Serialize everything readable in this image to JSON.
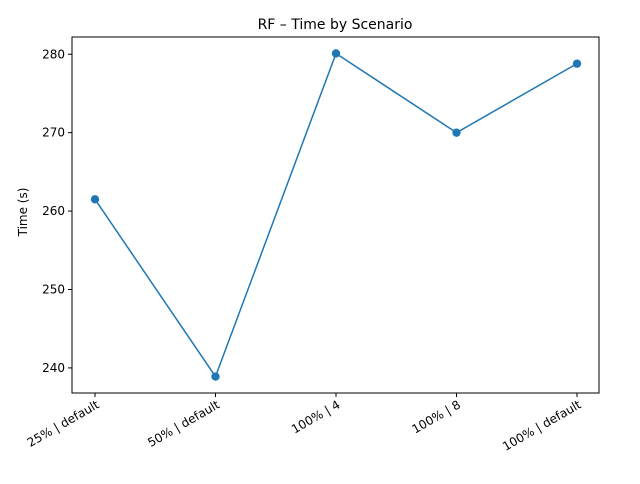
{
  "chart_data": {
    "type": "line",
    "title": "RF – Time by Scenario",
    "xlabel": "",
    "ylabel": "Time (s)",
    "categories": [
      "25% | default",
      "50% | default",
      "100% | 4",
      "100% | 8",
      "100% | default"
    ],
    "values": [
      261.5,
      238.9,
      280.1,
      270.0,
      278.8
    ],
    "ylim": [
      236.8,
      282.2
    ],
    "yticks": [
      240,
      250,
      260,
      270,
      280
    ],
    "grid": false,
    "legend": "none",
    "line_color": "#1f77b4",
    "marker": "circle"
  }
}
